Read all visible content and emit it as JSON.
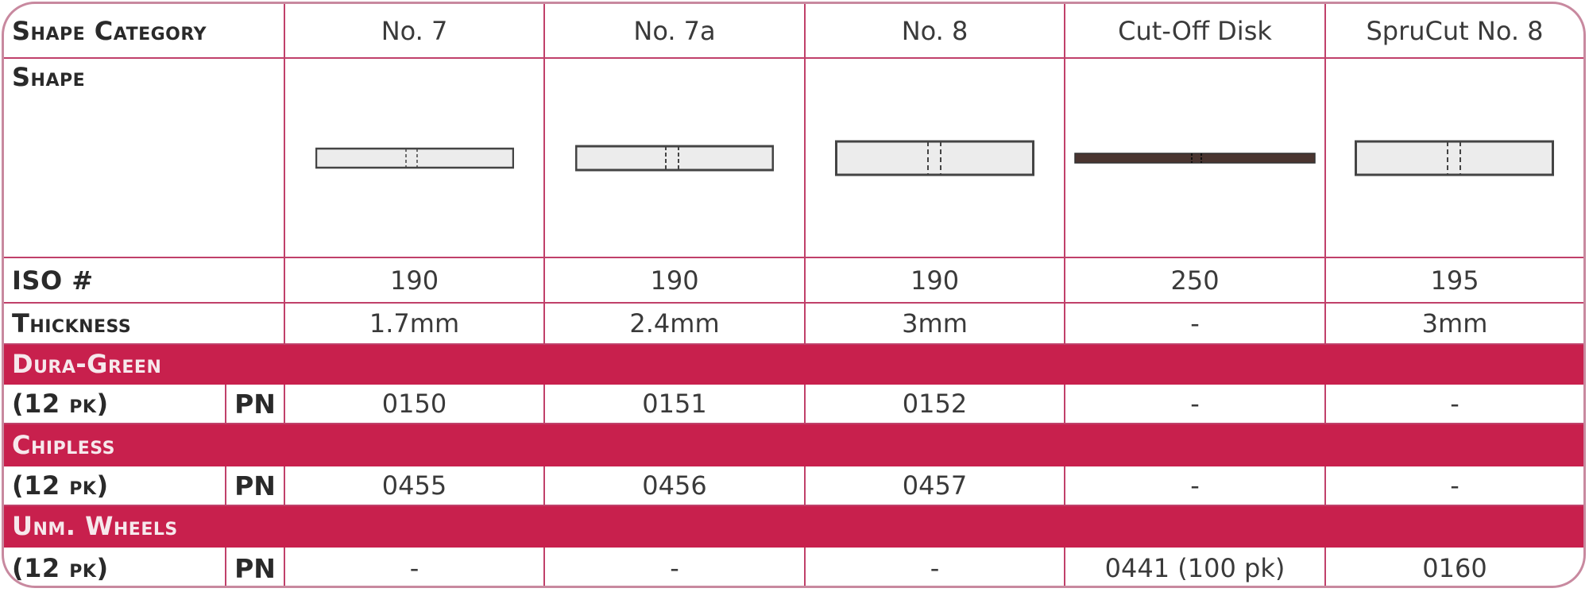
{
  "header": {
    "label": "Shape Category",
    "columns": [
      "No. 7",
      "No. 7a",
      "No. 8",
      "Cut-Off Disk",
      "SpruCut No. 8"
    ]
  },
  "shape_row": {
    "label": "Shape",
    "shapes": [
      {
        "icon": "wheel-profile-icon",
        "fill": "#ececec"
      },
      {
        "icon": "wheel-profile-icon",
        "fill": "#ececec"
      },
      {
        "icon": "wheel-profile-icon",
        "fill": "#ececec"
      },
      {
        "icon": "disk-profile-icon",
        "fill": "#4a3530"
      },
      {
        "icon": "wheel-profile-icon",
        "fill": "#ececec"
      }
    ]
  },
  "iso_row": {
    "label": "ISO #",
    "values": [
      "190",
      "190",
      "190",
      "250",
      "195"
    ]
  },
  "thickness_row": {
    "label": "Thickness",
    "values": [
      "1.7mm",
      "2.4mm",
      "3mm",
      "-",
      "3mm"
    ]
  },
  "groups": [
    {
      "name": "Dura-Green",
      "pack": "(12 pk)",
      "pn_label": "PN",
      "values": [
        "0150",
        "0151",
        "0152",
        "-",
        "-"
      ]
    },
    {
      "name": "Chipless",
      "pack": "(12 pk)",
      "pn_label": "PN",
      "values": [
        "0455",
        "0456",
        "0457",
        "-",
        "-"
      ]
    },
    {
      "name": "Unm. Wheels",
      "pack": "(12 pk)",
      "pn_label": "PN",
      "values": [
        "-",
        "-",
        "-",
        "0441 (100 pk)",
        "0160"
      ]
    }
  ],
  "colors": {
    "band": "#c8204d",
    "grid": "#c0406a"
  }
}
